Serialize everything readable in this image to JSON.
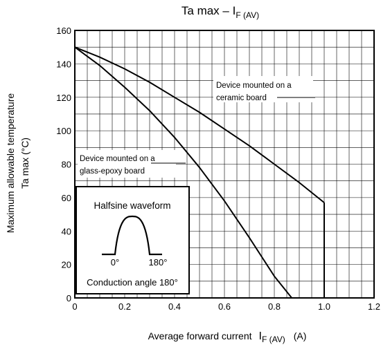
{
  "chart_data": {
    "type": "line",
    "title": {
      "main": "Ta max – I",
      "sub": "F (AV)"
    },
    "xlabel": {
      "main": "Average forward current",
      "sym": "I",
      "sub": "F (AV)",
      "unit": "(A)"
    },
    "ylabel": {
      "line1": "Maximum allowable temperature",
      "line2": "Ta max    (°C)"
    },
    "xlim": [
      0,
      1.2
    ],
    "ylim": [
      0,
      160
    ],
    "x_ticks": [
      "0",
      "0.2",
      "0.4",
      "0.6",
      "0.8",
      "1.0",
      "1.2"
    ],
    "y_ticks": [
      "0",
      "20",
      "40",
      "60",
      "80",
      "100",
      "120",
      "140",
      "160"
    ],
    "grid": true,
    "series": [
      {
        "x": [
          0,
          0.1,
          0.2,
          0.3,
          0.4,
          0.5,
          0.6,
          0.7,
          0.8,
          0.9,
          1.0
        ],
        "y": [
          150,
          144,
          137,
          129,
          120,
          111,
          101,
          91,
          80,
          69,
          57
        ]
      },
      {
        "x": [
          0,
          0.1,
          0.2,
          0.3,
          0.4,
          0.5,
          0.6,
          0.7,
          0.8,
          0.87
        ],
        "y": [
          150,
          139,
          126,
          112,
          96,
          78,
          58,
          36,
          13,
          0
        ]
      }
    ],
    "drop_line": {
      "x": 1.0,
      "y_from": 57,
      "y_to": 0
    },
    "annotations": [
      {
        "line1": "Device mounted on a",
        "line2": "ceramic board"
      },
      {
        "line1": "Device mounted on a",
        "line2": "glass-epoxy board"
      }
    ],
    "inset": {
      "title": "Halfsine waveform",
      "label_start": "0°",
      "label_end": "180°",
      "caption": "Conduction angle 180°"
    }
  }
}
